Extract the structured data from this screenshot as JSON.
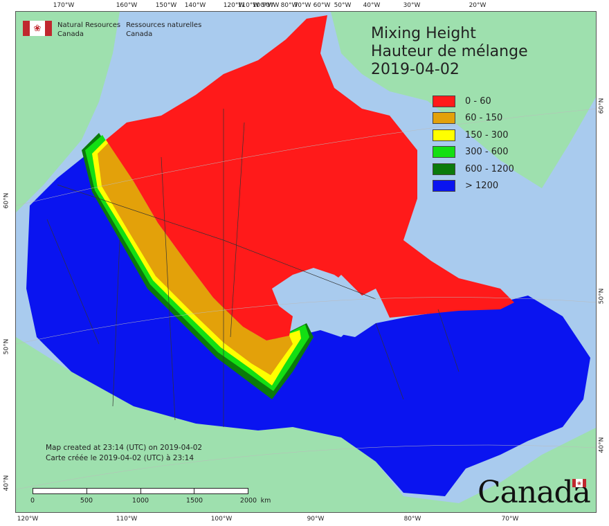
{
  "title": {
    "line1": "Mixing Height",
    "line2": "Hauteur de mélange",
    "date": "2019-04-02"
  },
  "agency": {
    "en_line1": "Natural Resources",
    "en_line2": "Canada",
    "fr_line1": "Ressources naturelles",
    "fr_line2": "Canada",
    "flag_icon": "maple-leaf-icon",
    "flag_color": "#c0282e"
  },
  "legend": [
    {
      "label": "0 - 60",
      "color": "#ff1a1a"
    },
    {
      "label": "60 - 150",
      "color": "#e3a10a"
    },
    {
      "label": "150 - 300",
      "color": "#ffff00"
    },
    {
      "label": "300 - 600",
      "color": "#13df13"
    },
    {
      "label": "600 - 1200",
      "color": "#0b7a0b"
    },
    {
      "label": "> 1200",
      "color": "#0a14f0"
    }
  ],
  "colors": {
    "ocean": "#a9cbee",
    "land_other": "#9ee0ae",
    "border": "#222222"
  },
  "top_ticks": [
    "170°W",
    "160°W",
    "150°W",
    "140°W",
    "120°W",
    "110°W",
    "100°W",
    "90°W",
    "80°W",
    "70°W",
    "60°W",
    "50°W",
    "40°W",
    "30°W",
    "20°W"
  ],
  "bottom_ticks": [
    "120°W",
    "110°W",
    "100°W",
    "90°W",
    "80°W",
    "70°W"
  ],
  "left_ticks": [
    "60°N",
    "50°N",
    "40°N"
  ],
  "right_ticks": [
    "60°N",
    "50°N",
    "40°N"
  ],
  "credit": {
    "en": "Map created at 23:14 (UTC) on 2019-04-02",
    "fr": "Carte créée le 2019-04-02 (UTC) à 23:14"
  },
  "scale": {
    "labels": [
      "0",
      "500",
      "1000",
      "1500",
      "2000"
    ],
    "unit": "km"
  },
  "wordmark": "Canada"
}
